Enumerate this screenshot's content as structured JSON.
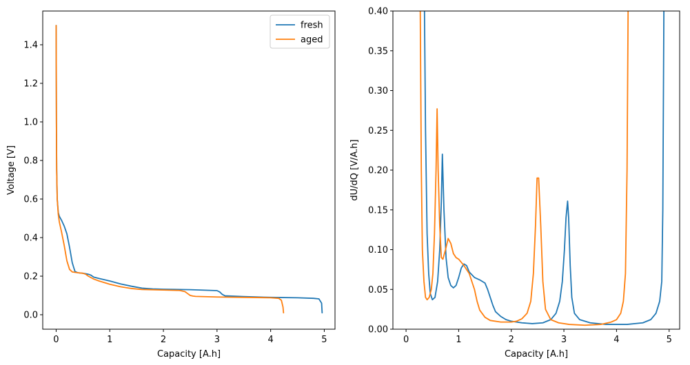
{
  "chart_data": [
    {
      "type": "line",
      "xlabel": "Capacity [A.h]",
      "ylabel": "Voltage [V]",
      "xlim": [
        -0.25,
        5.2
      ],
      "ylim": [
        -0.075,
        1.575
      ],
      "xticks": [
        0,
        1,
        2,
        3,
        4,
        5
      ],
      "xtick_labels": [
        "0",
        "1",
        "2",
        "3",
        "4",
        "5"
      ],
      "yticks": [
        0.0,
        0.2,
        0.4,
        0.6,
        0.8,
        1.0,
        1.2,
        1.4
      ],
      "ytick_labels": [
        "0.0",
        "0.2",
        "0.4",
        "0.6",
        "0.8",
        "1.0",
        "1.2",
        "1.4"
      ],
      "legend": "top-right",
      "series": [
        {
          "name": "fresh",
          "color": "#1f77b4",
          "x": [
            0,
            0.005,
            0.01,
            0.02,
            0.04,
            0.06,
            0.1,
            0.15,
            0.2,
            0.25,
            0.3,
            0.35,
            0.4,
            0.5,
            0.6,
            0.65,
            0.7,
            0.8,
            1.0,
            1.2,
            1.4,
            1.6,
            1.8,
            2.0,
            2.5,
            3.0,
            3.05,
            3.1,
            3.15,
            3.5,
            4.0,
            4.5,
            4.8,
            4.9,
            4.95,
            4.96
          ],
          "y": [
            1.5,
            1.0,
            0.75,
            0.6,
            0.53,
            0.51,
            0.49,
            0.46,
            0.42,
            0.35,
            0.27,
            0.225,
            0.218,
            0.215,
            0.21,
            0.205,
            0.195,
            0.188,
            0.175,
            0.16,
            0.148,
            0.138,
            0.134,
            0.132,
            0.13,
            0.125,
            0.118,
            0.105,
            0.098,
            0.094,
            0.09,
            0.088,
            0.085,
            0.082,
            0.06,
            0.01
          ]
        },
        {
          "name": "aged",
          "color": "#ff7f0e",
          "x": [
            0,
            0.005,
            0.01,
            0.02,
            0.04,
            0.06,
            0.1,
            0.15,
            0.2,
            0.25,
            0.3,
            0.4,
            0.5,
            0.55,
            0.6,
            0.7,
            0.8,
            1.0,
            1.2,
            1.4,
            1.6,
            2.0,
            2.3,
            2.4,
            2.45,
            2.5,
            2.55,
            2.6,
            3.0,
            3.5,
            4.0,
            4.15,
            4.2,
            4.23,
            4.24
          ],
          "y": [
            1.5,
            1.0,
            0.75,
            0.6,
            0.52,
            0.48,
            0.43,
            0.36,
            0.28,
            0.235,
            0.222,
            0.218,
            0.215,
            0.21,
            0.2,
            0.185,
            0.175,
            0.158,
            0.145,
            0.136,
            0.131,
            0.128,
            0.126,
            0.12,
            0.11,
            0.1,
            0.097,
            0.095,
            0.092,
            0.09,
            0.088,
            0.085,
            0.075,
            0.04,
            0.01
          ]
        }
      ]
    },
    {
      "type": "line",
      "xlabel": "Capacity [A.h]",
      "ylabel": "dU/dQ [V/A.h]",
      "xlim": [
        -0.25,
        5.2
      ],
      "ylim": [
        0.0,
        0.4
      ],
      "xticks": [
        0,
        1,
        2,
        3,
        4,
        5
      ],
      "xtick_labels": [
        "0",
        "1",
        "2",
        "3",
        "4",
        "5"
      ],
      "yticks": [
        0.0,
        0.05,
        0.1,
        0.15,
        0.2,
        0.25,
        0.3,
        0.35,
        0.4
      ],
      "ytick_labels": [
        "0.00",
        "0.05",
        "0.10",
        "0.15",
        "0.20",
        "0.25",
        "0.30",
        "0.35",
        "0.40"
      ],
      "series": [
        {
          "color": "#1f77b4",
          "x": [
            0.35,
            0.37,
            0.4,
            0.43,
            0.46,
            0.5,
            0.55,
            0.6,
            0.64,
            0.67,
            0.69,
            0.72,
            0.76,
            0.8,
            0.85,
            0.9,
            0.95,
            1.0,
            1.05,
            1.1,
            1.15,
            1.2,
            1.3,
            1.4,
            1.5,
            1.55,
            1.6,
            1.65,
            1.7,
            1.8,
            1.9,
            2.0,
            2.2,
            2.4,
            2.6,
            2.75,
            2.85,
            2.92,
            2.97,
            3.01,
            3.04,
            3.07,
            3.09,
            3.12,
            3.15,
            3.2,
            3.3,
            3.5,
            3.8,
            4.2,
            4.5,
            4.65,
            4.75,
            4.82,
            4.86,
            4.88,
            4.9
          ],
          "y": [
            0.4,
            0.25,
            0.12,
            0.07,
            0.045,
            0.037,
            0.04,
            0.06,
            0.1,
            0.16,
            0.22,
            0.15,
            0.09,
            0.065,
            0.055,
            0.052,
            0.055,
            0.065,
            0.077,
            0.082,
            0.08,
            0.072,
            0.065,
            0.062,
            0.058,
            0.05,
            0.04,
            0.03,
            0.022,
            0.016,
            0.012,
            0.01,
            0.008,
            0.007,
            0.008,
            0.012,
            0.02,
            0.035,
            0.06,
            0.1,
            0.14,
            0.161,
            0.14,
            0.08,
            0.04,
            0.02,
            0.012,
            0.008,
            0.006,
            0.006,
            0.008,
            0.012,
            0.02,
            0.035,
            0.06,
            0.15,
            0.4
          ]
        },
        {
          "x": [
            0.27,
            0.29,
            0.31,
            0.34,
            0.37,
            0.4,
            0.44,
            0.48,
            0.51,
            0.54,
            0.57,
            0.59,
            0.61,
            0.64,
            0.67,
            0.7,
            0.75,
            0.8,
            0.85,
            0.9,
            0.95,
            1.0,
            1.05,
            1.1,
            1.2,
            1.3,
            1.35,
            1.4,
            1.5,
            1.6,
            1.8,
            2.0,
            2.1,
            2.2,
            2.3,
            2.37,
            2.42,
            2.46,
            2.49,
            2.52,
            2.56,
            2.6,
            2.65,
            2.75,
            2.9,
            3.1,
            3.4,
            3.7,
            3.9,
            4.0,
            4.08,
            4.13,
            4.17,
            4.2,
            4.22
          ],
          "y": [
            0.4,
            0.2,
            0.1,
            0.06,
            0.04,
            0.037,
            0.04,
            0.05,
            0.07,
            0.12,
            0.2,
            0.277,
            0.2,
            0.13,
            0.09,
            0.088,
            0.1,
            0.114,
            0.108,
            0.095,
            0.09,
            0.088,
            0.084,
            0.08,
            0.07,
            0.05,
            0.035,
            0.024,
            0.015,
            0.011,
            0.009,
            0.009,
            0.01,
            0.013,
            0.02,
            0.035,
            0.07,
            0.13,
            0.19,
            0.19,
            0.13,
            0.06,
            0.025,
            0.012,
            0.008,
            0.006,
            0.005,
            0.006,
            0.009,
            0.012,
            0.02,
            0.035,
            0.07,
            0.2,
            0.4
          ],
          "color": "#ff7f0e"
        }
      ]
    }
  ]
}
